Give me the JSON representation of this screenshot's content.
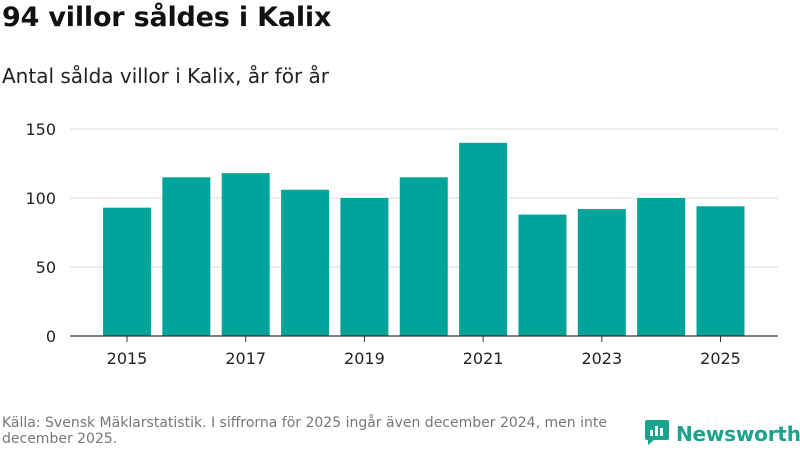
{
  "header": {
    "title": "94 villor såldes i Kalix",
    "subtitle": "Antal sålda villor i Kalix, år för år"
  },
  "footer": {
    "source": "Källa: Svensk Mäklarstatistik. I siffrorna för 2025 ingår även december 2024, men inte december 2025.",
    "brand": "Newsworthy"
  },
  "colors": {
    "bar": "#00a49a",
    "brand": "#1aa38f"
  },
  "chart_data": {
    "type": "bar",
    "title": "94 villor såldes i Kalix",
    "subtitle": "Antal sålda villor i Kalix, år för år",
    "xlabel": "",
    "ylabel": "",
    "categories": [
      "2015",
      "2016",
      "2017",
      "2018",
      "2019",
      "2020",
      "2021",
      "2022",
      "2023",
      "2024",
      "2025"
    ],
    "values": [
      93,
      115,
      118,
      106,
      100,
      115,
      140,
      88,
      92,
      100,
      94
    ],
    "x_tick_labels": [
      "2015",
      "2017",
      "2019",
      "2021",
      "2023",
      "2025"
    ],
    "y_ticks": [
      0,
      50,
      100,
      150
    ],
    "ylim": [
      0,
      150
    ],
    "grid": true,
    "legend": "none"
  }
}
